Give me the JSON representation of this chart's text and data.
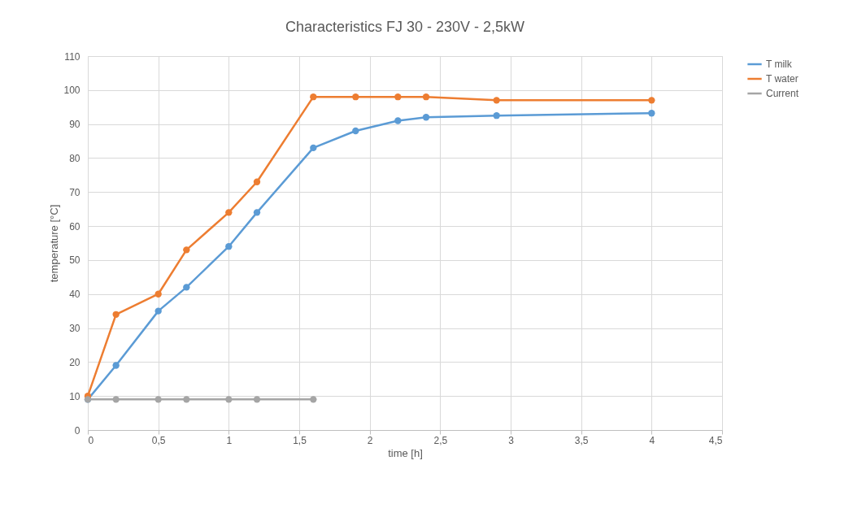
{
  "chart_data": {
    "type": "line",
    "title": "Characteristics FJ 30 - 230V - 2,5kW",
    "xlabel": "time [h]",
    "ylabel": "temperature [°C]",
    "series": [
      {
        "name": "T milk",
        "color": "#5b9bd5",
        "x": [
          0,
          0.2,
          0.5,
          0.7,
          1,
          1.2,
          1.6,
          1.9,
          2.2,
          2.4,
          2.9,
          4
        ],
        "values": [
          9,
          19,
          35,
          42,
          54,
          64,
          83,
          88,
          91,
          92,
          92.5,
          93.2
        ]
      },
      {
        "name": "T water",
        "color": "#ed7d31",
        "x": [
          0,
          0.2,
          0.5,
          0.7,
          1,
          1.2,
          1.6,
          1.9,
          2.2,
          2.4,
          2.9,
          4
        ],
        "values": [
          10,
          34,
          40,
          53,
          64,
          73,
          98,
          98,
          98,
          98,
          97,
          97
        ]
      },
      {
        "name": "Current",
        "color": "#a5a5a5",
        "x": [
          0,
          0.2,
          0.5,
          0.7,
          1,
          1.2,
          1.6
        ],
        "values": [
          9,
          9,
          9,
          9,
          9,
          9,
          9
        ]
      }
    ],
    "xlim": [
      0,
      4.5
    ],
    "xticks": [
      0,
      {
        "value": 0.5,
        "label": "0,5"
      },
      1,
      {
        "value": 1.5,
        "label": "1,5"
      },
      2,
      {
        "value": 2.5,
        "label": "2,5"
      },
      3,
      {
        "value": 3.5,
        "label": "3,5"
      },
      4,
      {
        "value": 4.5,
        "label": "4,5"
      }
    ],
    "ylim": [
      0,
      110
    ],
    "yticks": [
      0,
      10,
      20,
      30,
      40,
      50,
      60,
      70,
      80,
      90,
      100,
      110
    ],
    "grid": true,
    "legend": "right",
    "marker": "circle",
    "line_style": "solid"
  }
}
